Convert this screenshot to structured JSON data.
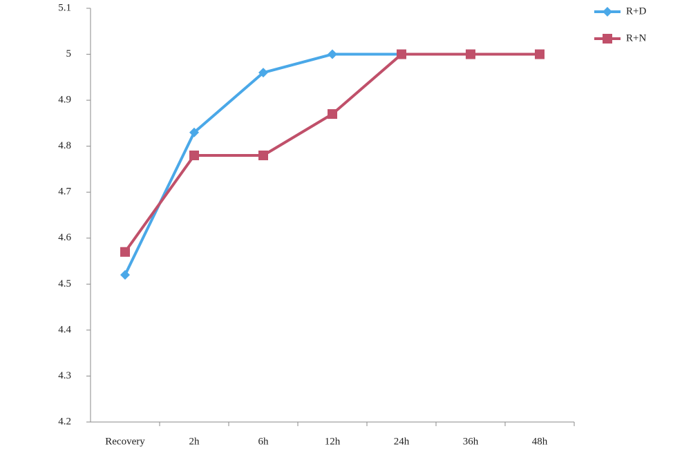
{
  "chart_data": {
    "type": "line",
    "categories": [
      "Recovery",
      "2h",
      "6h",
      "12h",
      "24h",
      "36h",
      "48h"
    ],
    "series": [
      {
        "name": "R+D",
        "color": "#4aa8e8",
        "marker": "diamond",
        "values": [
          4.52,
          4.83,
          4.96,
          5,
          5,
          5,
          5
        ]
      },
      {
        "name": "R+N",
        "color": "#c0506a",
        "marker": "square",
        "values": [
          4.57,
          4.78,
          4.78,
          4.87,
          5,
          5,
          5
        ]
      }
    ],
    "ylim": [
      4.2,
      5.1
    ],
    "yticks": [
      4.2,
      4.3,
      4.4,
      4.5,
      4.6,
      4.7,
      4.8,
      4.9,
      5,
      5.1
    ],
    "legend": "top-right"
  }
}
